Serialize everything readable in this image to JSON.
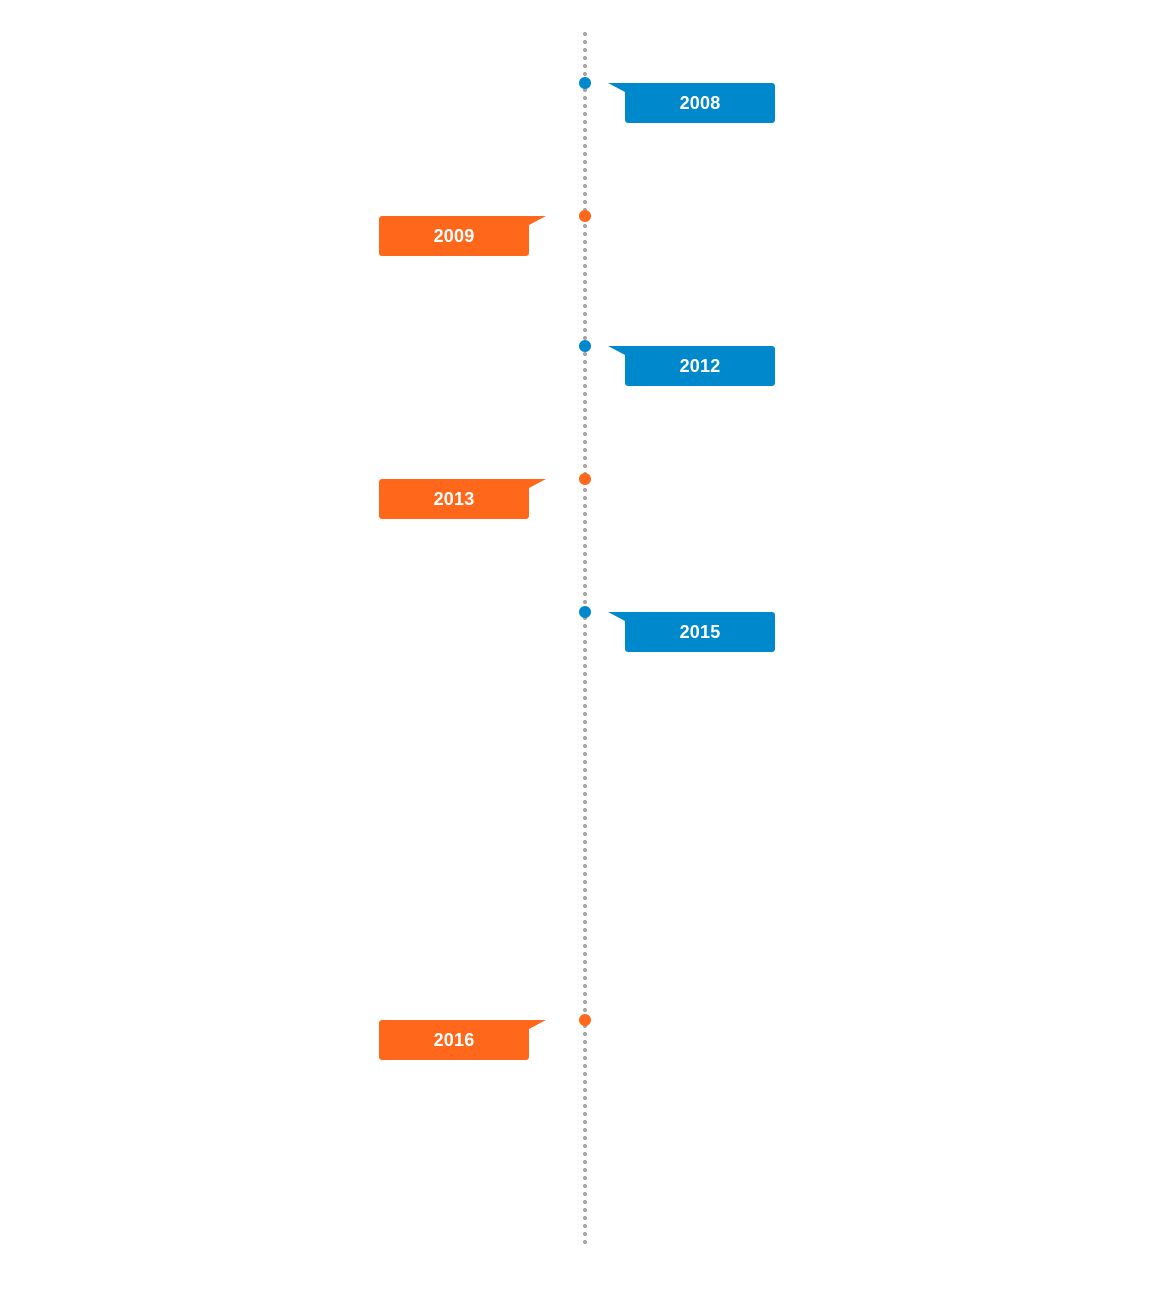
{
  "colors": {
    "blue": "#0088cc",
    "orange": "#ff671b",
    "line": "#a6a6a6"
  },
  "events": [
    {
      "year": "2008",
      "side": "right",
      "color": "blue"
    },
    {
      "year": "2009",
      "side": "left",
      "color": "orange"
    },
    {
      "year": "2012",
      "side": "right",
      "color": "blue"
    },
    {
      "year": "2013",
      "side": "left",
      "color": "orange"
    },
    {
      "year": "2015",
      "side": "right",
      "color": "blue"
    },
    {
      "year": "2016",
      "side": "left",
      "color": "orange"
    }
  ]
}
